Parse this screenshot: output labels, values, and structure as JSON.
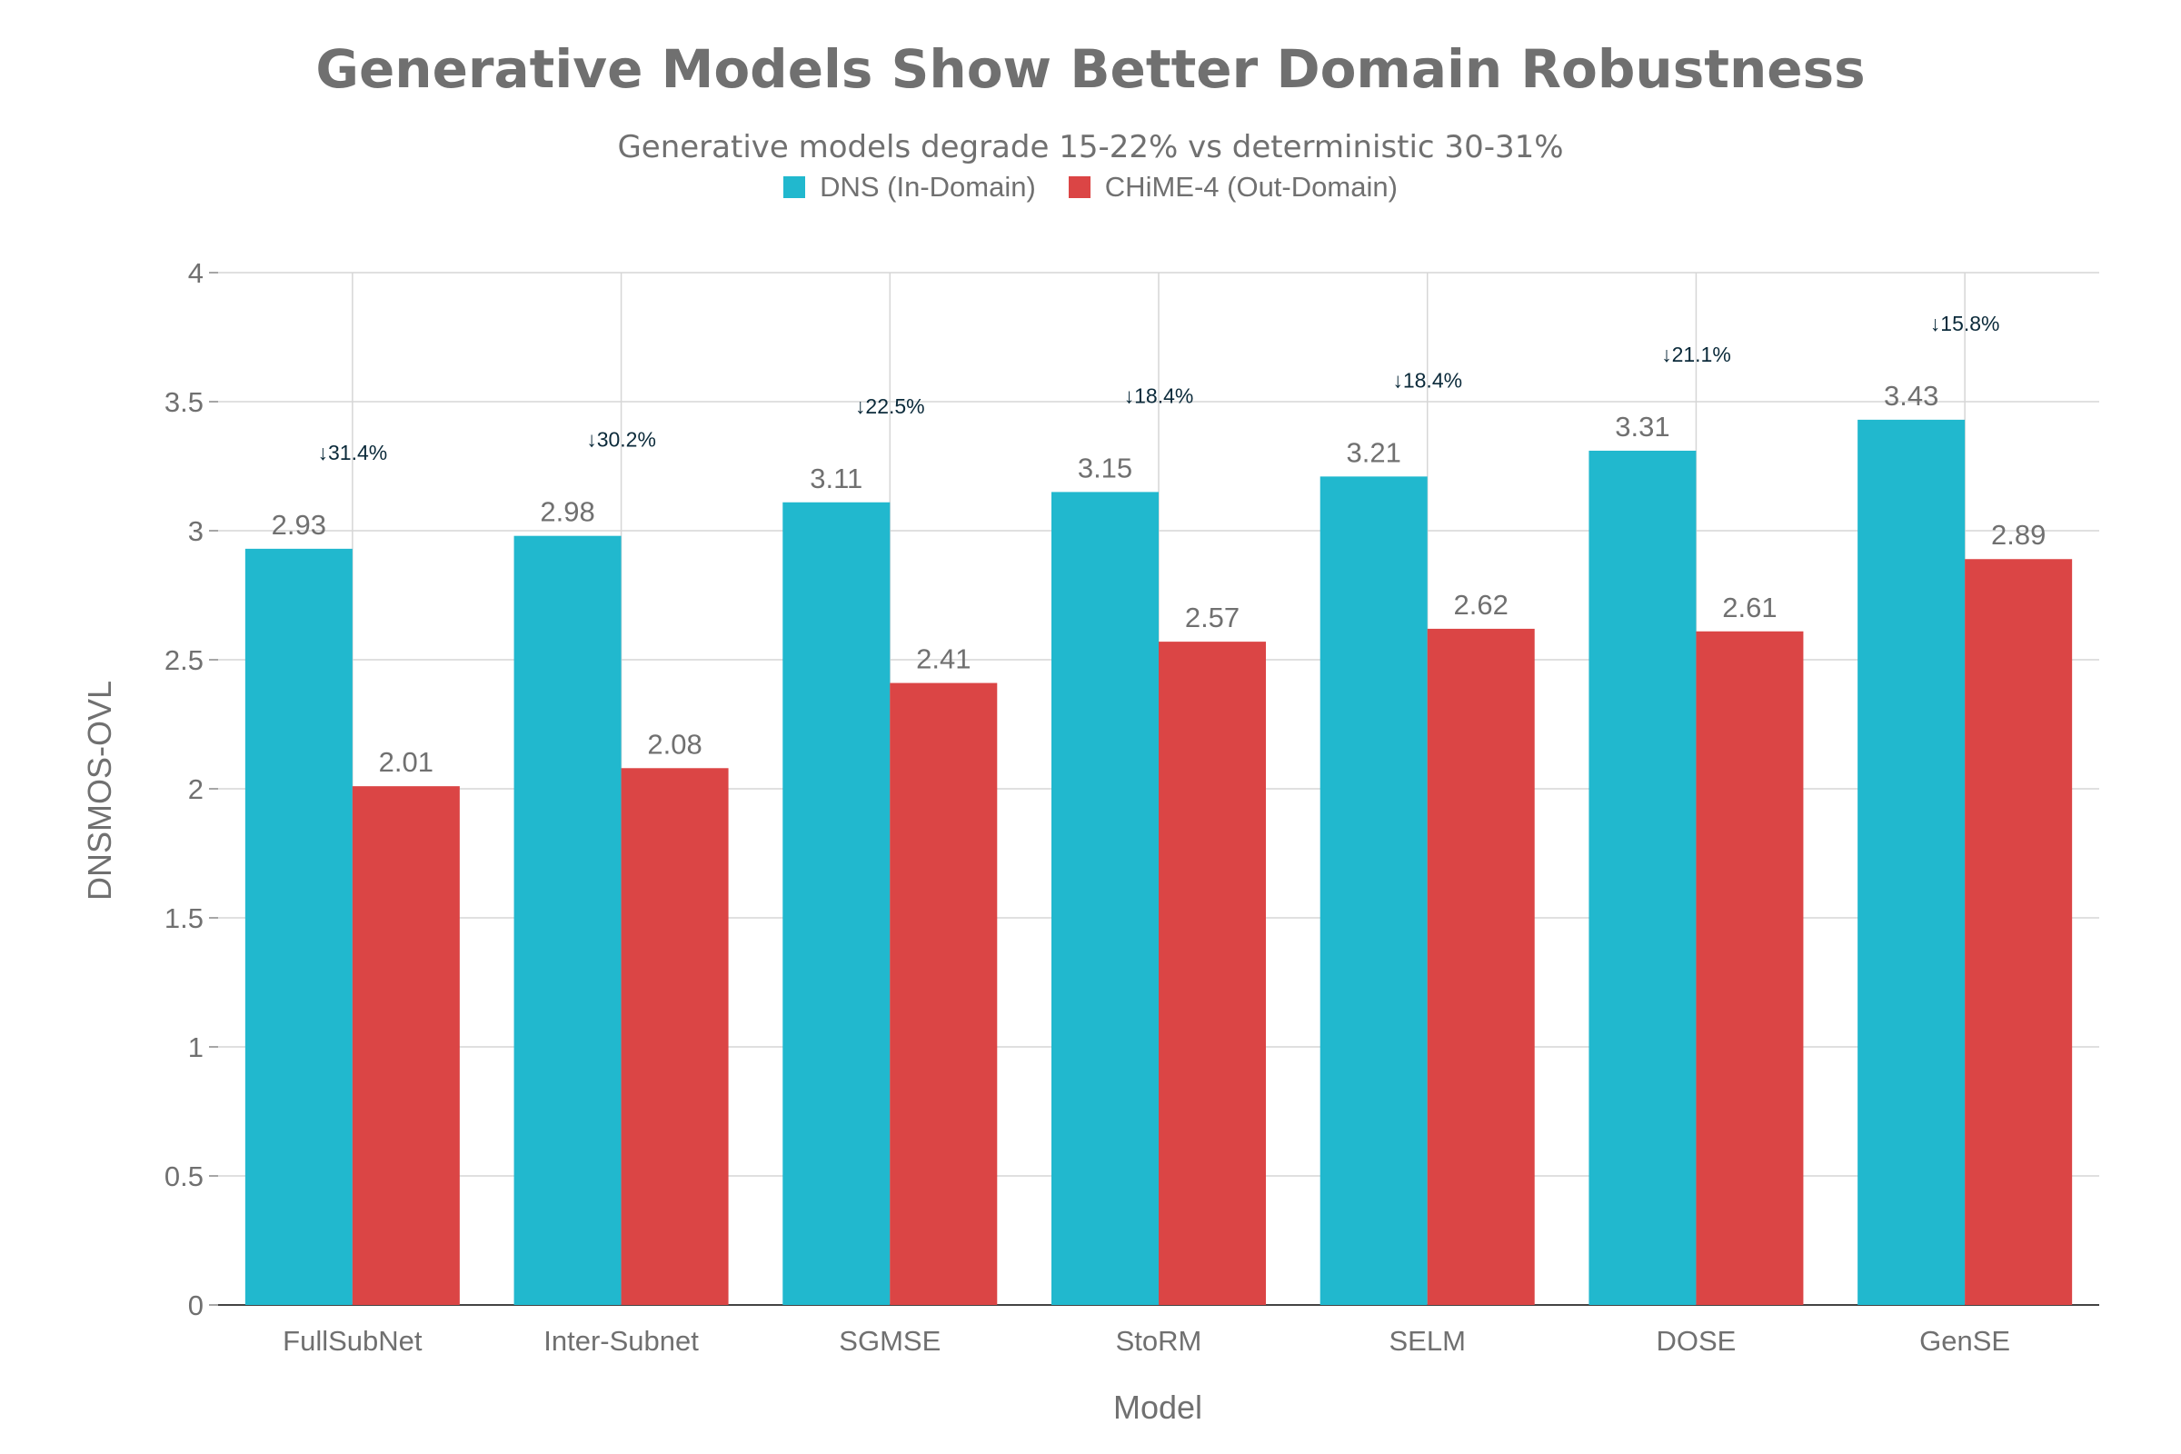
{
  "chart_data": {
    "type": "bar",
    "title": "Generative Models Show Better Domain Robustness",
    "subtitle": "Generative models degrade 15-22% vs deterministic 30-31%",
    "xlabel": "Model",
    "ylabel": "DNSMOS-OVL",
    "ylim": [
      0,
      4
    ],
    "yticks": [
      "0",
      "0.5",
      "1",
      "1.5",
      "2",
      "2.5",
      "3",
      "3.5",
      "4"
    ],
    "grid": true,
    "legend_position": "top-center",
    "categories": [
      "FullSubNet",
      "Inter-Subnet",
      "SGMSE",
      "StoRM",
      "SELM",
      "DOSE",
      "GenSE"
    ],
    "series": [
      {
        "name": "DNS (In-Domain)",
        "color": "#21b8ce",
        "values": [
          2.93,
          2.98,
          3.11,
          3.15,
          3.21,
          3.31,
          3.43
        ],
        "labels": [
          "2.93",
          "2.98",
          "3.11",
          "3.15",
          "3.21",
          "3.31",
          "3.43"
        ]
      },
      {
        "name": "CHiME-4 (Out-Domain)",
        "color": "#db4545",
        "values": [
          2.01,
          2.08,
          2.41,
          2.57,
          2.62,
          2.61,
          2.89
        ],
        "labels": [
          "2.01",
          "2.08",
          "2.41",
          "2.57",
          "2.62",
          "2.61",
          "2.89"
        ]
      }
    ],
    "annotations": [
      "↓31.4%",
      "↓30.2%",
      "↓22.5%",
      "↓18.4%",
      "↓18.4%",
      "↓21.1%",
      "↓15.8%"
    ]
  }
}
